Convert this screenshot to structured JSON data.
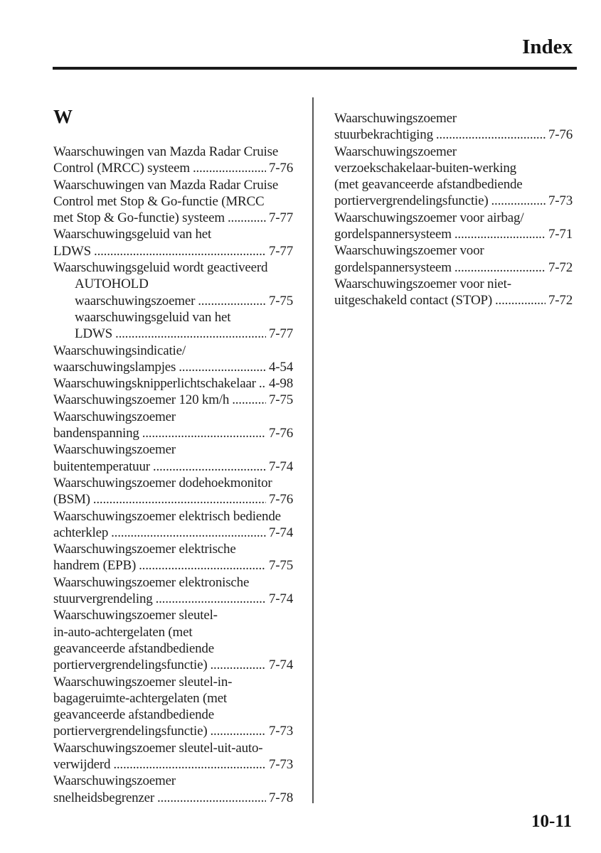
{
  "colors": {
    "ink": "#1f1f1f",
    "rule": "#1a1a1a"
  },
  "header": {
    "title": "Index"
  },
  "footer": {
    "page_number": "10-11"
  },
  "index": {
    "section_letter": "W",
    "left_entries": [
      {
        "indent": false,
        "pre": [
          "Waarschuwingen van Mazda Radar Cruise"
        ],
        "text": "Control (MRCC) systeem",
        "page": "7-76"
      },
      {
        "indent": false,
        "pre": [
          "Waarschuwingen van Mazda Radar Cruise",
          "Control met Stop & Go-functie (MRCC"
        ],
        "text": "met Stop & Go-functie) systeem",
        "page": "7-77"
      },
      {
        "indent": false,
        "pre": [
          "Waarschuwingsgeluid van het"
        ],
        "text": "LDWS",
        "page": "7-77"
      },
      {
        "indent": false,
        "pre": [],
        "text": "Waarschuwingsgeluid wordt geactiveerd",
        "page": null
      },
      {
        "indent": true,
        "pre": [
          "AUTOHOLD"
        ],
        "text": "waarschuwingszoemer",
        "page": "7-75"
      },
      {
        "indent": true,
        "pre": [
          "waarschuwingsgeluid van het"
        ],
        "text": "LDWS",
        "page": "7-77"
      },
      {
        "indent": false,
        "pre": [
          "Waarschuwingsindicatie/"
        ],
        "text": "waarschuwingslampjes",
        "page": "4-54"
      },
      {
        "indent": false,
        "pre": [],
        "text": "Waarschuwingsknipperlichtschakelaar",
        "page": "4-98"
      },
      {
        "indent": false,
        "pre": [],
        "text": "Waarschuwingszoemer 120 km/h",
        "page": "7-75"
      },
      {
        "indent": false,
        "pre": [
          "Waarschuwingszoemer"
        ],
        "text": "bandenspanning",
        "page": "7-76"
      },
      {
        "indent": false,
        "pre": [
          "Waarschuwingszoemer"
        ],
        "text": "buitentemperatuur",
        "page": "7-74"
      },
      {
        "indent": false,
        "pre": [
          "Waarschuwingszoemer dodehoekmonitor"
        ],
        "text": "(BSM)",
        "page": "7-76"
      },
      {
        "indent": false,
        "pre": [
          "Waarschuwingszoemer elektrisch bediende"
        ],
        "text": "achterklep",
        "page": "7-74"
      },
      {
        "indent": false,
        "pre": [
          "Waarschuwingszoemer elektrische"
        ],
        "text": "handrem (EPB)",
        "page": "7-75"
      },
      {
        "indent": false,
        "pre": [
          "Waarschuwingszoemer elektronische"
        ],
        "text": "stuurvergrendeling",
        "page": "7-74"
      },
      {
        "indent": false,
        "pre": [
          "Waarschuwingszoemer sleutel-",
          "in-auto-achtergelaten (met",
          "geavanceerde afstandbediende"
        ],
        "text": "portiervergrendelingsfunctie)",
        "page": "7-74"
      },
      {
        "indent": false,
        "pre": [
          "Waarschuwingszoemer sleutel-in-",
          "bagageruimte-achtergelaten (met",
          "geavanceerde afstandbediende"
        ],
        "text": "portiervergrendelingsfunctie)",
        "page": "7-73"
      },
      {
        "indent": false,
        "pre": [
          "Waarschuwingszoemer sleutel-uit-auto-"
        ],
        "text": "verwijderd",
        "page": "7-73"
      },
      {
        "indent": false,
        "pre": [
          "Waarschuwingszoemer"
        ],
        "text": "snelheidsbegrenzer",
        "page": "7-78"
      }
    ],
    "right_entries": [
      {
        "indent": false,
        "pre": [
          "Waarschuwingszoemer"
        ],
        "text": "stuurbekrachtiging",
        "page": "7-76"
      },
      {
        "indent": false,
        "pre": [
          "Waarschuwingszoemer",
          "verzoekschakelaar-buiten-werking",
          "(met geavanceerde afstandbediende"
        ],
        "text": "portiervergrendelingsfunctie)",
        "page": "7-73"
      },
      {
        "indent": false,
        "pre": [
          "Waarschuwingszoemer voor airbag/"
        ],
        "text": "gordelspannersysteem",
        "page": "7-71"
      },
      {
        "indent": false,
        "pre": [
          "Waarschuwingszoemer voor"
        ],
        "text": "gordelspannersysteem",
        "page": "7-72"
      },
      {
        "indent": false,
        "pre": [
          "Waarschuwingszoemer voor niet-"
        ],
        "text": "uitgeschakeld contact (STOP)",
        "page": "7-72"
      }
    ]
  }
}
